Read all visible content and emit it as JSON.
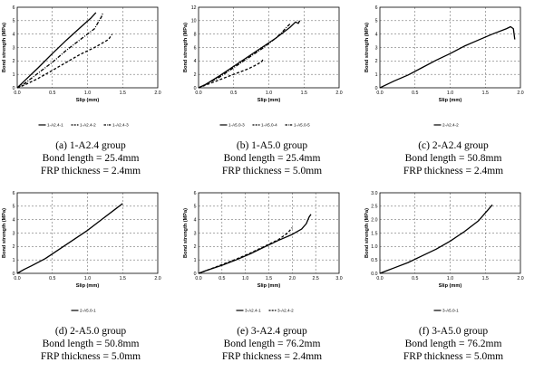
{
  "chart_data": [
    {
      "type": "line",
      "xlabel": "Slip (mm)",
      "ylabel": "Bond strength (MPa)",
      "xlim": [
        0,
        2
      ],
      "ylim": [
        0,
        6
      ],
      "xticks": [
        "0.0",
        "0.5",
        "1.0",
        "1.5",
        "2.0"
      ],
      "yticks": [
        "0",
        "1",
        "2",
        "3",
        "4",
        "5",
        "6"
      ],
      "grid": "dashed",
      "legend_position": "bottom",
      "series": [
        {
          "name": "1-A2.4-1",
          "style": "solid",
          "x": [
            0,
            0.1,
            0.3,
            0.5,
            0.7,
            0.9,
            1.05,
            1.12
          ],
          "y": [
            0,
            0.5,
            1.5,
            2.55,
            3.55,
            4.5,
            5.2,
            5.6
          ]
        },
        {
          "name": "1-A2.4-2",
          "style": "dash",
          "x": [
            0,
            0.1,
            0.3,
            0.5,
            0.7,
            0.9,
            1.1,
            1.3,
            1.35
          ],
          "y": [
            0,
            0.2,
            0.7,
            1.3,
            1.9,
            2.5,
            3.0,
            3.6,
            4.0
          ]
        },
        {
          "name": "1-A2.4-3",
          "style": "dashdot",
          "x": [
            0,
            0.1,
            0.3,
            0.5,
            0.7,
            0.9,
            1.1,
            1.2,
            1.22
          ],
          "y": [
            0,
            0.3,
            1.1,
            1.9,
            2.8,
            3.6,
            4.4,
            5.3,
            5.6
          ]
        }
      ],
      "caption": [
        "(a)  1-A2.4 group",
        "Bond length = 25.4mm",
        "FRP thickness = 2.4mm"
      ]
    },
    {
      "type": "line",
      "xlabel": "Slip (mm)",
      "ylabel": "Bond strength (MPa)",
      "xlim": [
        0,
        2
      ],
      "ylim": [
        0,
        12
      ],
      "xticks": [
        "0.0",
        "0.5",
        "1.0",
        "1.5",
        "2.0"
      ],
      "yticks": [
        "0",
        "2",
        "4",
        "6",
        "8",
        "10",
        "12"
      ],
      "grid": "dashed",
      "legend_position": "bottom",
      "series": [
        {
          "name": "1-A5.0-3",
          "style": "solid",
          "x": [
            0,
            0.1,
            0.3,
            0.5,
            0.7,
            0.9,
            1.1,
            1.3,
            1.38,
            1.42,
            1.44
          ],
          "y": [
            0,
            0.5,
            1.8,
            3.2,
            4.6,
            6.0,
            7.4,
            9.0,
            9.8,
            9.6,
            10.0
          ]
        },
        {
          "name": "1-A5.0-4",
          "style": "dash",
          "x": [
            0,
            0.1,
            0.3,
            0.5,
            0.7,
            0.8,
            0.9,
            0.92
          ],
          "y": [
            0,
            0.4,
            1.2,
            2.0,
            2.8,
            3.3,
            3.9,
            4.3
          ]
        },
        {
          "name": "1-A5.0-5",
          "style": "dashdot",
          "x": [
            0,
            0.1,
            0.3,
            0.5,
            0.7,
            0.9,
            1.1,
            1.2,
            1.25,
            1.3
          ],
          "y": [
            0,
            0.5,
            1.6,
            3.0,
            4.4,
            5.8,
            7.4,
            8.4,
            9.0,
            9.5
          ]
        }
      ],
      "caption": [
        "(b)  1-A5.0 group",
        "Bond length = 25.4mm",
        "FRP thickness = 5.0mm"
      ]
    },
    {
      "type": "line",
      "xlabel": "Slip (mm)",
      "ylabel": "Bond strength (MPa)",
      "xlim": [
        0,
        2
      ],
      "ylim": [
        0,
        6
      ],
      "xticks": [
        "0.0",
        "0.5",
        "1.0",
        "1.5",
        "2.0"
      ],
      "yticks": [
        "0",
        "1",
        "2",
        "3",
        "4",
        "5",
        "6"
      ],
      "grid": "dashed",
      "legend_position": "bottom",
      "series": [
        {
          "name": "2-A2.4-2",
          "style": "solid",
          "x": [
            0,
            0.1,
            0.2,
            0.4,
            0.6,
            0.8,
            1.0,
            1.2,
            1.4,
            1.6,
            1.8,
            1.86,
            1.9,
            1.92
          ],
          "y": [
            0,
            0.25,
            0.5,
            0.95,
            1.5,
            2.05,
            2.55,
            3.1,
            3.55,
            4.0,
            4.4,
            4.55,
            4.4,
            3.6
          ]
        }
      ],
      "caption": [
        "(c)  2-A2.4 group",
        "Bond length = 50.8mm",
        "FRP thickness = 2.4mm"
      ]
    },
    {
      "type": "line",
      "xlabel": "Slip (mm)",
      "ylabel": "Bond strength (MPa)",
      "xlim": [
        0,
        2
      ],
      "ylim": [
        0,
        6
      ],
      "xticks": [
        "0.0",
        "0.5",
        "1.0",
        "1.5",
        "2.0"
      ],
      "yticks": [
        "0",
        "1",
        "2",
        "3",
        "4",
        "5",
        "6"
      ],
      "grid": "dashed",
      "legend_position": "bottom",
      "series": [
        {
          "name": "2-A5.0-1",
          "style": "solid",
          "x": [
            0,
            0.1,
            0.2,
            0.4,
            0.6,
            0.8,
            1.0,
            1.2,
            1.4,
            1.5
          ],
          "y": [
            0,
            0.3,
            0.55,
            1.1,
            1.8,
            2.5,
            3.2,
            4.0,
            4.8,
            5.2
          ]
        }
      ],
      "caption": [
        "(d)  2-A5.0 group",
        "Bond length = 50.8mm",
        "FRP thickness = 5.0mm"
      ]
    },
    {
      "type": "line",
      "xlabel": "Slip (mm)",
      "ylabel": "Bond strength (MPa)",
      "xlim": [
        0,
        3
      ],
      "ylim": [
        0,
        6
      ],
      "xticks": [
        "0.0",
        "0.5",
        "1.0",
        "1.5",
        "2.0",
        "2.5",
        "3.0"
      ],
      "yticks": [
        "0",
        "1",
        "2",
        "3",
        "4",
        "5",
        "6"
      ],
      "grid": "dashed",
      "legend_position": "bottom",
      "series": [
        {
          "name": "3-A2.4-1",
          "style": "solid",
          "x": [
            0,
            0.2,
            0.5,
            0.8,
            1.1,
            1.4,
            1.7,
            2.0,
            2.2,
            2.3,
            2.36,
            2.4
          ],
          "y": [
            0,
            0.25,
            0.6,
            1.0,
            1.45,
            1.95,
            2.45,
            2.9,
            3.3,
            3.7,
            4.2,
            4.4
          ]
        },
        {
          "name": "3-A2.4-2",
          "style": "dash",
          "x": [
            0,
            0.2,
            0.5,
            0.8,
            1.1,
            1.4,
            1.7,
            1.9,
            2.0
          ],
          "y": [
            0,
            0.25,
            0.65,
            1.05,
            1.5,
            2.0,
            2.5,
            3.0,
            3.4
          ]
        }
      ],
      "caption": [
        "(e)  3-A2.4 group",
        "Bond length = 76.2mm",
        "FRP thickness = 2.4mm"
      ]
    },
    {
      "type": "line",
      "xlabel": "Slip (mm)",
      "ylabel": "Bond strength (MPa)",
      "xlim": [
        0,
        2
      ],
      "ylim": [
        0,
        3
      ],
      "xticks": [
        "0.0",
        "0.5",
        "1.0",
        "1.5",
        "2.0"
      ],
      "yticks": [
        "0.0",
        "0.5",
        "1.0",
        "1.5",
        "2.0",
        "2.5",
        "3.0"
      ],
      "grid": "dashed",
      "legend_position": "bottom",
      "series": [
        {
          "name": "3-A5.0-1",
          "style": "solid",
          "x": [
            0,
            0.1,
            0.2,
            0.4,
            0.6,
            0.8,
            1.0,
            1.2,
            1.4,
            1.55,
            1.6
          ],
          "y": [
            0,
            0.1,
            0.2,
            0.4,
            0.65,
            0.9,
            1.2,
            1.55,
            1.95,
            2.4,
            2.55
          ]
        }
      ],
      "caption": [
        "(f)  3-A5.0 group",
        "Bond length = 76.2mm",
        "FRP thickness = 5.0mm"
      ]
    }
  ]
}
